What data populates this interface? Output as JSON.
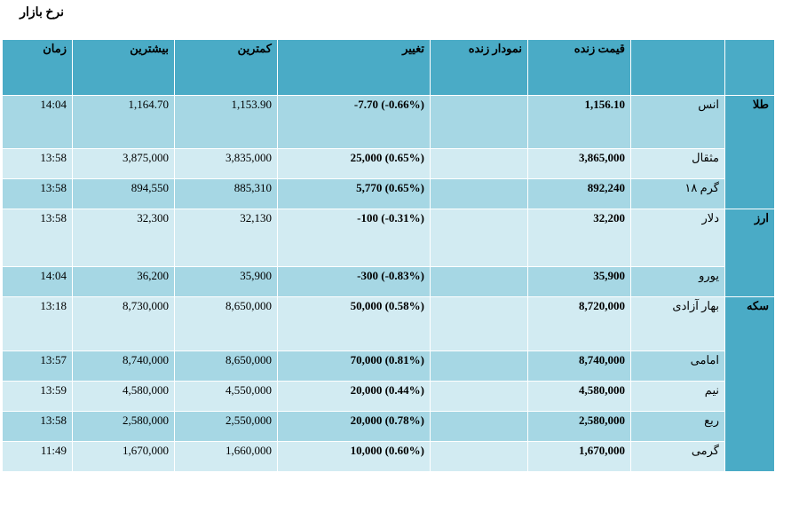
{
  "page": {
    "title": "نرخ بازار"
  },
  "columns": {
    "group": "",
    "name": "",
    "live_price": "قیمت زنده",
    "live_chart": "نمودار زنده",
    "change": "تغییر",
    "low": "کمترین",
    "high": "بیشترین",
    "time": "زمان"
  },
  "groups": [
    {
      "label": "طلا",
      "rows": [
        {
          "name": "انس",
          "price": "1,156.10",
          "change": "-7.70 (-0.66%)",
          "low": "1,153.90",
          "high": "1,164.70",
          "time": "14:04"
        },
        {
          "name": "مثقال",
          "price": "3,865,000",
          "change": "25,000 (0.65%)",
          "low": "3,835,000",
          "high": "3,875,000",
          "time": "13:58"
        },
        {
          "name": "گرم ۱۸",
          "price": "892,240",
          "change": "5,770 (0.65%)",
          "low": "885,310",
          "high": "894,550",
          "time": "13:58"
        }
      ]
    },
    {
      "label": "ارز",
      "rows": [
        {
          "name": "دلار",
          "price": "32,200",
          "change": "-100 (-0.31%)",
          "low": "32,130",
          "high": "32,300",
          "time": "13:58"
        },
        {
          "name": "یورو",
          "price": "35,900",
          "change": "-300 (-0.83%)",
          "low": "35,900",
          "high": "36,200",
          "time": "14:04"
        }
      ]
    },
    {
      "label": "سکه",
      "rows": [
        {
          "name": "بهار آزادی",
          "price": "8,720,000",
          "change": "50,000 (0.58%)",
          "low": "8,650,000",
          "high": "8,730,000",
          "time": "13:18"
        },
        {
          "name": "امامی",
          "price": "8,740,000",
          "change": "70,000 (0.81%)",
          "low": "8,650,000",
          "high": "8,740,000",
          "time": "13:57"
        },
        {
          "name": "نیم",
          "price": "4,580,000",
          "change": "20,000 (0.44%)",
          "low": "4,550,000",
          "high": "4,580,000",
          "time": "13:59"
        },
        {
          "name": "ربع",
          "price": "2,580,000",
          "change": "20,000 (0.78%)",
          "low": "2,550,000",
          "high": "2,580,000",
          "time": "13:58"
        },
        {
          "name": "گرمی",
          "price": "1,670,000",
          "change": "10,000 (0.60%)",
          "low": "1,660,000",
          "high": "1,670,000",
          "time": "11:49"
        }
      ]
    }
  ]
}
